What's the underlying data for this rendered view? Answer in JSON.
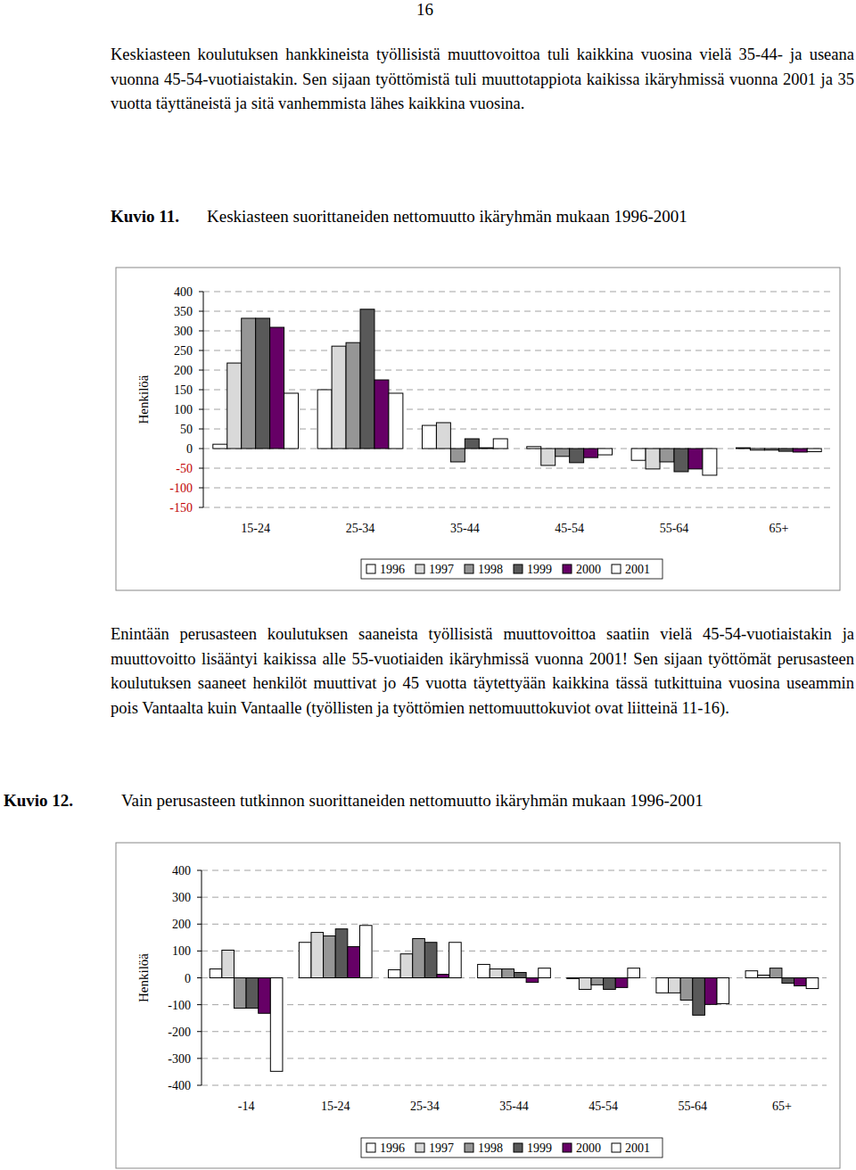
{
  "page": {
    "number": "16",
    "paragraphs": [
      "Keskiasteen koulutuksen hankkineista työllisistä muuttovoittoa tuli kaikkina vuosina vielä 35-44- ja useana vuonna 45-54-vuotiaistakin. Sen sijaan työttömistä tuli muuttotappiota kaikissa ikäryhmissä vuonna 2001 ja 35 vuotta täyttäneistä ja sitä vanhemmista lähes kaikkina vuosina.",
      "Enintään perusasteen koulutuksen saaneista työllisistä muuttovoittoa saatiin vielä 45-54-vuotiaistakin ja muuttovoitto lisääntyi kaikissa alle 55-vuotiaiden ikäryhmissä vuonna 2001! Sen sijaan työttömät perusasteen koulutuksen saaneet henkilöt muuttivat jo 45 vuotta täytettyään kaikkina tässä tutkittuina vuosina useammin pois Vantaalta kuin Vantaalle (työllisten ja työttömien nettomuuttokuviot ovat liitteinä 11-16)."
    ],
    "figure_labels": [
      "Kuvio 11.",
      "Kuvio 12."
    ]
  },
  "chart_data": [
    {
      "type": "bar",
      "title": "Keskiasteen suorittaneiden nettomuutto ikäryhmän mukaan 1996-2001",
      "y_label": "Henkilöä",
      "categories": [
        "15-24",
        "25-34",
        "35-44",
        "45-54",
        "55-64",
        "65+"
      ],
      "series": [
        {
          "name": "1996",
          "color": "#ffffff",
          "values": [
            11,
            150,
            59,
            5,
            -30,
            2
          ]
        },
        {
          "name": "1997",
          "color": "#d9d9d9",
          "values": [
            218,
            261,
            66,
            -43,
            -52,
            -4
          ]
        },
        {
          "name": "1998",
          "color": "#969696",
          "values": [
            332,
            270,
            -34,
            -20,
            -34,
            -4
          ]
        },
        {
          "name": "1999",
          "color": "#595959",
          "values": [
            332,
            355,
            25,
            -36,
            -59,
            -7
          ]
        },
        {
          "name": "2000",
          "color": "#660066",
          "values": [
            309,
            175,
            2,
            -23,
            -52,
            -9
          ]
        },
        {
          "name": "2001",
          "color": "#ffffff",
          "values": [
            141,
            141,
            25,
            -16,
            -68,
            -8
          ]
        }
      ],
      "ylim": [
        -150,
        400
      ],
      "yticks": [
        -150,
        -100,
        -50,
        0,
        50,
        100,
        150,
        200,
        250,
        300,
        350,
        400
      ],
      "grid": true,
      "legend": "bottom"
    },
    {
      "type": "bar",
      "title": "Vain perusasteen tutkinnon suorittaneiden nettomuutto ikäryhmän mukaan 1996-2001",
      "y_label": "Henkilöä",
      "categories": [
        "-14",
        "15-24",
        "25-34",
        "35-44",
        "45-54",
        "55-64",
        "65+"
      ],
      "series": [
        {
          "name": "1996",
          "color": "#ffffff",
          "values": [
            33,
            132,
            30,
            50,
            -3,
            -56,
            26
          ]
        },
        {
          "name": "1997",
          "color": "#d9d9d9",
          "values": [
            103,
            169,
            89,
            33,
            -43,
            -56,
            10
          ]
        },
        {
          "name": "1998",
          "color": "#969696",
          "values": [
            -113,
            156,
            146,
            33,
            -26,
            -83,
            36
          ]
        },
        {
          "name": "1999",
          "color": "#595959",
          "values": [
            -113,
            182,
            132,
            20,
            -43,
            -139,
            -20
          ]
        },
        {
          "name": "2000",
          "color": "#660066",
          "values": [
            -132,
            116,
            13,
            -17,
            -36,
            -99,
            -30
          ]
        },
        {
          "name": "2001",
          "color": "#ffffff",
          "values": [
            -348,
            195,
            132,
            36,
            36,
            -96,
            -40
          ]
        }
      ],
      "ylim": [
        -400,
        400
      ],
      "yticks": [
        -400,
        -300,
        -200,
        -100,
        0,
        100,
        200,
        300,
        400
      ],
      "grid": true,
      "legend": "bottom"
    }
  ]
}
